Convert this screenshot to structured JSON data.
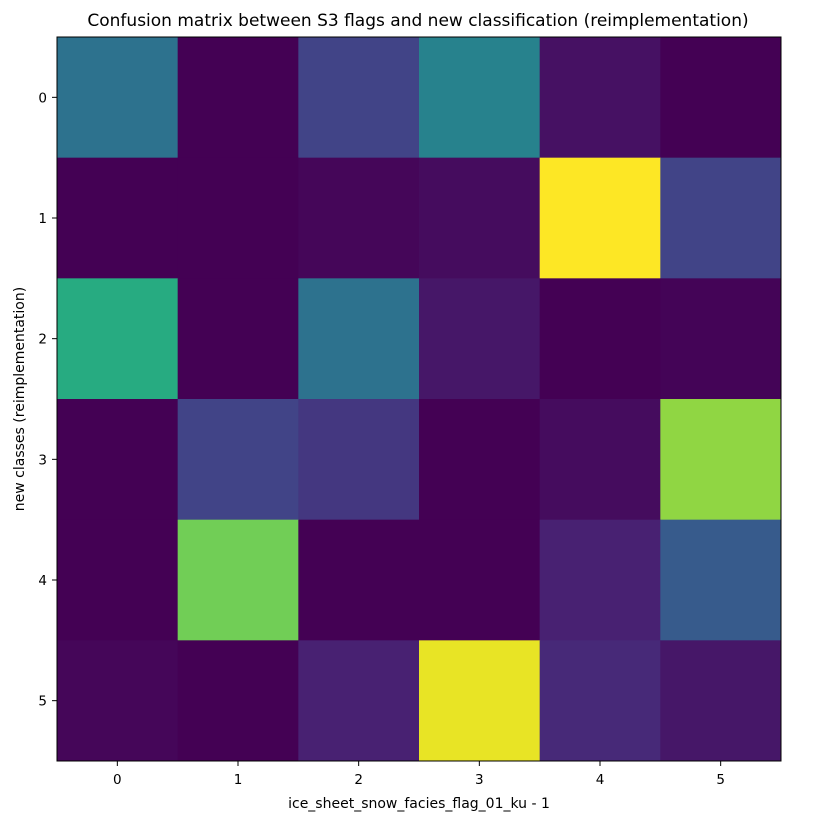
{
  "chart_data": {
    "type": "heatmap",
    "title": "Confusion matrix between S3 flags and new classification (reimplementation)",
    "xlabel": "ice_sheet_snow_facies_flag_01_ku - 1",
    "ylabel": "new classes (reimplementation)",
    "x_categories": [
      "0",
      "1",
      "2",
      "3",
      "4",
      "5"
    ],
    "y_categories": [
      "0",
      "1",
      "2",
      "3",
      "4",
      "5"
    ],
    "colormap": "viridis",
    "value_range": [
      0,
      1
    ],
    "grid": false,
    "colorbar": false,
    "values": [
      [
        0.47,
        0.0,
        0.25,
        0.55,
        0.06,
        0.0
      ],
      [
        0.0,
        0.0,
        0.02,
        0.04,
        1.0,
        0.25
      ],
      [
        0.76,
        0.0,
        0.47,
        0.08,
        0.0,
        0.01
      ],
      [
        0.0,
        0.25,
        0.2,
        0.0,
        0.04,
        0.9
      ],
      [
        0.0,
        0.87,
        0.0,
        0.0,
        0.12,
        0.36
      ],
      [
        0.02,
        0.0,
        0.12,
        0.98,
        0.15,
        0.08
      ]
    ]
  }
}
